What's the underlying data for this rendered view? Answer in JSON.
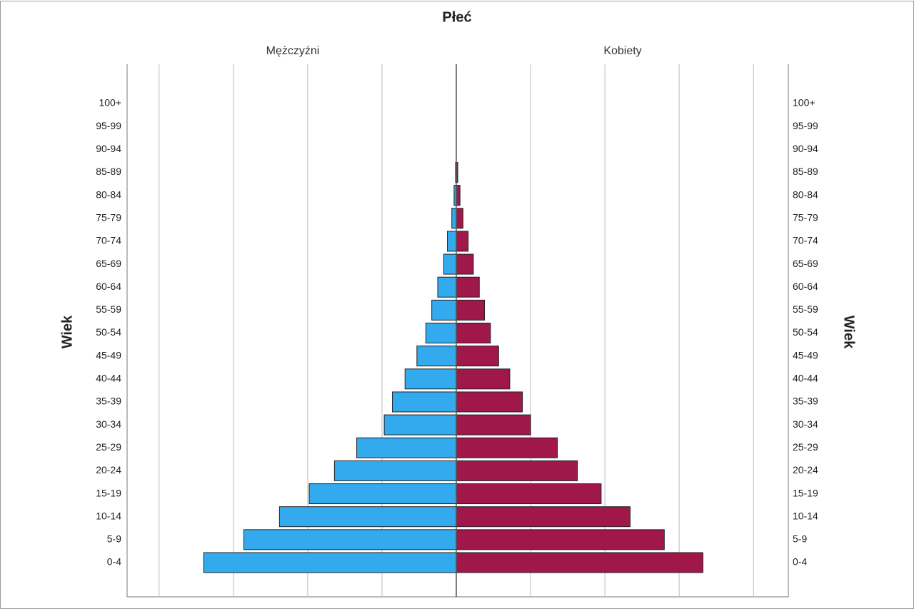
{
  "chart_data": {
    "type": "pyramid",
    "title": "Płeć",
    "y_label": "Wiek",
    "categories": [
      "100+",
      "95-99",
      "90-94",
      "85-89",
      "80-84",
      "75-79",
      "70-74",
      "65-69",
      "60-64",
      "55-59",
      "50-54",
      "45-49",
      "40-44",
      "35-39",
      "30-34",
      "25-29",
      "20-24",
      "15-19",
      "10-14",
      "5-9",
      "0-4"
    ],
    "series": [
      {
        "name": "Mężczyźni",
        "color": "#33aaee",
        "values": [
          0,
          0,
          0,
          0.01,
          0.03,
          0.06,
          0.12,
          0.17,
          0.25,
          0.33,
          0.41,
          0.53,
          0.69,
          0.86,
          0.97,
          1.34,
          1.64,
          1.98,
          2.38,
          2.86,
          3.4
        ]
      },
      {
        "name": "Kobiety",
        "color": "#a0184a",
        "values": [
          0,
          0,
          0,
          0.02,
          0.05,
          0.09,
          0.16,
          0.23,
          0.31,
          0.38,
          0.46,
          0.57,
          0.72,
          0.89,
          1.0,
          1.36,
          1.63,
          1.95,
          2.34,
          2.8,
          3.32
        ]
      }
    ],
    "xlim": [
      0,
      4.45
    ],
    "xticks": [
      1,
      2,
      3,
      4
    ],
    "grid": true
  }
}
